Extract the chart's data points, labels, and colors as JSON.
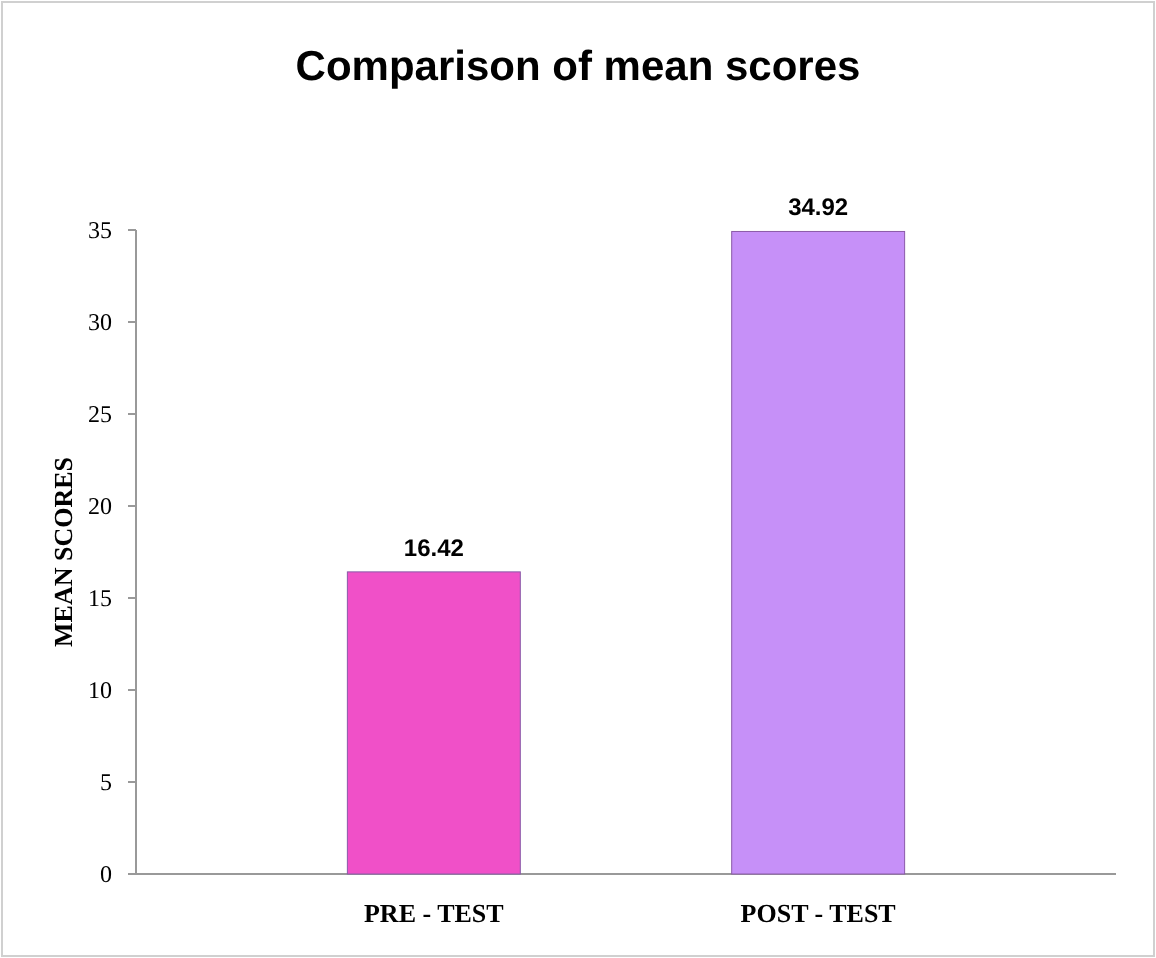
{
  "chart_data": {
    "type": "bar",
    "title": "Comparison  of mean scores",
    "ylabel": "MEAN SCORES",
    "categories": [
      "PRE - TEST",
      "POST - TEST"
    ],
    "values": [
      16.42,
      34.92
    ],
    "colors": [
      "#f050c8",
      "#c690f8"
    ],
    "ylim": [
      0,
      35
    ],
    "yticks": [
      0,
      5,
      10,
      15,
      20,
      25,
      30,
      35
    ],
    "data_labels": true,
    "grid": false
  }
}
